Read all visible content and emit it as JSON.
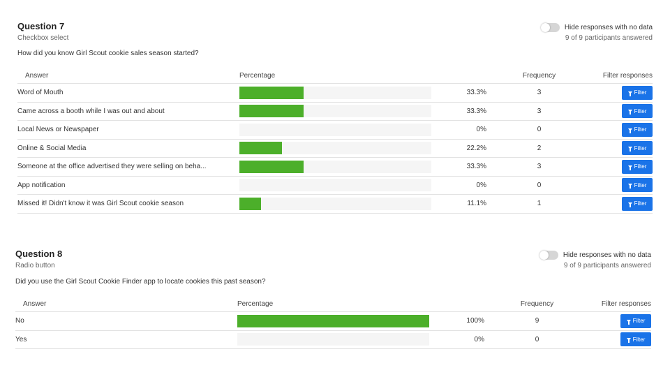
{
  "colors": {
    "bar": "#4caf2a",
    "button": "#1a73e8",
    "toggle_off": "#d6d6d6"
  },
  "questions": [
    {
      "title": "Question 7",
      "type": "Checkbox select",
      "text": "How did you know Girl Scout cookie sales season started?",
      "toggle_label": "Hide responses with no data",
      "toggle_on": false,
      "answered": "9 of 9 participants answered",
      "headers": {
        "answer": "Answer",
        "percentage": "Percentage",
        "frequency": "Frequency",
        "filter": "Filter responses"
      },
      "rows": [
        {
          "answer": "Word of Mouth",
          "percent_label": "33.3%",
          "percent_value": 33.3,
          "frequency": "3",
          "filter_label": "Filter"
        },
        {
          "answer": "Came across a booth while I was out and about",
          "percent_label": "33.3%",
          "percent_value": 33.3,
          "frequency": "3",
          "filter_label": "Filter"
        },
        {
          "answer": "Local News or Newspaper",
          "percent_label": "0%",
          "percent_value": 0,
          "frequency": "0",
          "filter_label": "Filter"
        },
        {
          "answer": "Online & Social Media",
          "percent_label": "22.2%",
          "percent_value": 22.2,
          "frequency": "2",
          "filter_label": "Filter"
        },
        {
          "answer": "Someone at the office advertised they were selling on beha...",
          "percent_label": "33.3%",
          "percent_value": 33.3,
          "frequency": "3",
          "filter_label": "Filter"
        },
        {
          "answer": "App notification",
          "percent_label": "0%",
          "percent_value": 0,
          "frequency": "0",
          "filter_label": "Filter"
        },
        {
          "answer": "Missed it! Didn't know it was Girl Scout cookie season",
          "percent_label": "11.1%",
          "percent_value": 11.1,
          "frequency": "1",
          "filter_label": "Filter"
        }
      ]
    },
    {
      "title": "Question 8",
      "type": "Radio button",
      "text": "Did you use the Girl Scout Cookie Finder app to locate cookies this past season?",
      "toggle_label": "Hide responses with no data",
      "toggle_on": false,
      "answered": "9 of 9 participants answered",
      "headers": {
        "answer": "Answer",
        "percentage": "Percentage",
        "frequency": "Frequency",
        "filter": "Filter responses"
      },
      "rows": [
        {
          "answer": "No",
          "percent_label": "100%",
          "percent_value": 100,
          "frequency": "9",
          "filter_label": "Filter"
        },
        {
          "answer": "Yes",
          "percent_label": "0%",
          "percent_value": 0,
          "frequency": "0",
          "filter_label": "Filter"
        }
      ]
    }
  ]
}
